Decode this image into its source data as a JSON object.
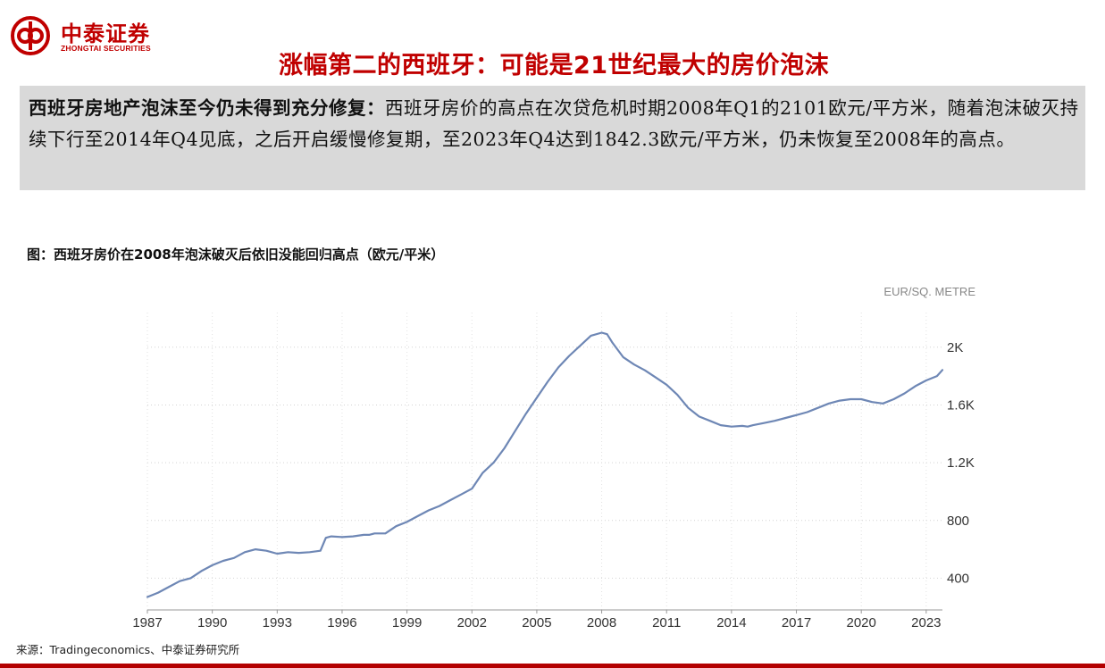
{
  "brand": {
    "name_cn": "中泰证券",
    "name_en": "ZHONGTAI SECURITIES",
    "color": "#c00000"
  },
  "header": {
    "title": "涨幅第二的西班牙：可能是21世纪最大的房价泡沫"
  },
  "summary": {
    "bold": "西班牙房地产泡沫至今仍未得到充分修复：",
    "text": "西班牙房价的高点在次贷危机时期2008年Q1的2101欧元/平方米，随着泡沫破灭持续下行至2014年Q4见底，之后开启缓慢修复期，至2023年Q4达到1842.3欧元/平方米，仍未恢复至2008年的高点。"
  },
  "figure": {
    "title": "图：西班牙房价在2008年泡沫破灭后依旧没能回归高点（欧元/平米）"
  },
  "source": {
    "text": "来源：Tradingeconomics、中泰证券研究所"
  },
  "chart_data": {
    "type": "line",
    "unit_label": "EUR/SQ. METRE",
    "line_color": "#6e87b5",
    "grid": true,
    "y_axis_position": "right",
    "ylim": [
      180,
      2240
    ],
    "xlim": [
      1987,
      2023.75
    ],
    "y_ticks": [
      400,
      800,
      1200,
      1600,
      2000
    ],
    "y_tick_labels": [
      "400",
      "800",
      "1.2K",
      "1.6K",
      "2K"
    ],
    "x_ticks": [
      "1987",
      "1990",
      "1993",
      "1996",
      "1999",
      "2002",
      "2005",
      "2008",
      "2011",
      "2014",
      "2017",
      "2020",
      "2023"
    ],
    "series": [
      {
        "x": [
          1987.0,
          1987.5,
          1988.0,
          1988.5,
          1989.0,
          1989.5,
          1990.0,
          1990.5,
          1991.0,
          1991.5,
          1992.0,
          1992.5,
          1993.0,
          1993.5,
          1994.0,
          1994.5,
          1995.0,
          1995.25,
          1995.5,
          1996.0,
          1996.5,
          1997.0,
          1997.25,
          1997.5,
          1998.0,
          1998.5,
          1999.0,
          1999.5,
          2000.0,
          2000.5,
          2001.0,
          2001.5,
          2002.0,
          2002.5,
          2003.0,
          2003.5,
          2004.0,
          2004.5,
          2005.0,
          2005.5,
          2006.0,
          2006.5,
          2007.0,
          2007.5,
          2008.0,
          2008.25,
          2008.5,
          2009.0,
          2009.5,
          2010.0,
          2010.5,
          2011.0,
          2011.5,
          2012.0,
          2012.5,
          2013.0,
          2013.5,
          2014.0,
          2014.5,
          2014.75,
          2015.0,
          2015.5,
          2016.0,
          2016.5,
          2017.0,
          2017.5,
          2018.0,
          2018.5,
          2019.0,
          2019.5,
          2020.0,
          2020.5,
          2021.0,
          2021.5,
          2022.0,
          2022.5,
          2023.0,
          2023.5,
          2023.75
        ],
        "y": [
          270,
          300,
          340,
          380,
          400,
          450,
          490,
          520,
          540,
          580,
          600,
          590,
          570,
          580,
          575,
          580,
          590,
          680,
          690,
          685,
          690,
          700,
          700,
          710,
          710,
          760,
          790,
          830,
          870,
          900,
          940,
          980,
          1020,
          1130,
          1200,
          1300,
          1420,
          1540,
          1650,
          1760,
          1860,
          1940,
          2010,
          2080,
          2101,
          2090,
          2030,
          1930,
          1880,
          1840,
          1790,
          1740,
          1670,
          1580,
          1520,
          1490,
          1460,
          1450,
          1455,
          1450,
          1460,
          1475,
          1490,
          1510,
          1530,
          1550,
          1580,
          1610,
          1630,
          1640,
          1640,
          1620,
          1610,
          1640,
          1680,
          1730,
          1770,
          1800,
          1842
        ]
      }
    ]
  }
}
